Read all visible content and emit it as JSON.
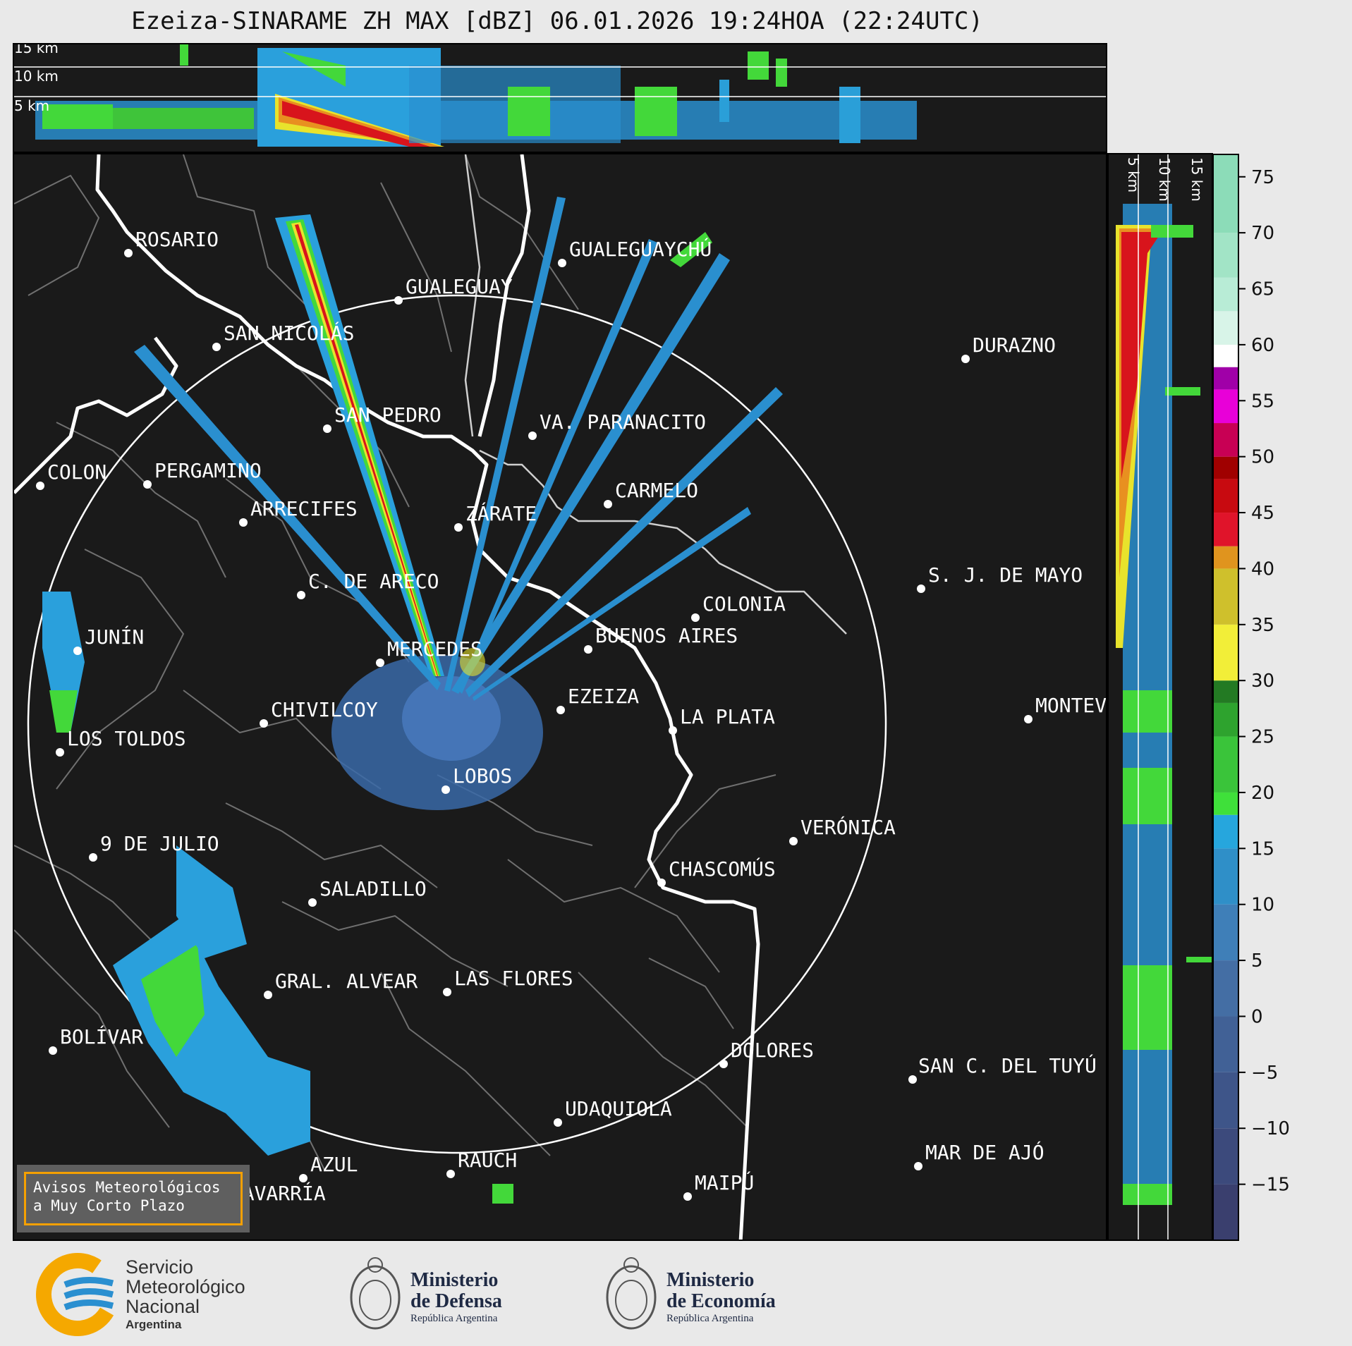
{
  "title": "Ezeiza-SINARAME ZH MAX [dBZ] 06.01.2026 19:24HOA (22:24UTC)",
  "top_profile": {
    "altitude_labels": [
      "15 km",
      "10 km",
      "5 km"
    ]
  },
  "side_profile": {
    "altitude_labels": [
      "5 km",
      "10 km",
      "15 km"
    ]
  },
  "colorbar": {
    "ticks": [
      "75",
      "70",
      "65",
      "60",
      "55",
      "50",
      "45",
      "40",
      "35",
      "30",
      "25",
      "20",
      "15",
      "10",
      "5",
      "0",
      "−5",
      "−10",
      "−15"
    ],
    "range": [
      -20,
      77
    ]
  },
  "cities": [
    {
      "name": "ROSARIO"
    },
    {
      "name": "GUALEGUAYCHÚ"
    },
    {
      "name": "GUALEGUAY"
    },
    {
      "name": "SAN NICOLÁS"
    },
    {
      "name": "DURAZNO"
    },
    {
      "name": "SAN PEDRO"
    },
    {
      "name": "VA. PARANACITO"
    },
    {
      "name": "COLON"
    },
    {
      "name": "PERGAMINO"
    },
    {
      "name": "CARMELO"
    },
    {
      "name": "ARRECIFES"
    },
    {
      "name": "ZÁRATE"
    },
    {
      "name": "S. J. DE MAYO"
    },
    {
      "name": "C. DE ARECO"
    },
    {
      "name": "COLONIA"
    },
    {
      "name": "JUNÍN"
    },
    {
      "name": "MERCEDES"
    },
    {
      "name": "BUENOS AIRES"
    },
    {
      "name": "EZEIZA"
    },
    {
      "name": "MONTEVIDEO"
    },
    {
      "name": "CHIVILCOY"
    },
    {
      "name": "LA PLATA"
    },
    {
      "name": "LOS TOLDOS"
    },
    {
      "name": "LOBOS"
    },
    {
      "name": "VERÓNICA"
    },
    {
      "name": "9 DE JULIO"
    },
    {
      "name": "CHASCOMÚS"
    },
    {
      "name": "SALADILLO"
    },
    {
      "name": "GRAL. ALVEAR"
    },
    {
      "name": "LAS FLORES"
    },
    {
      "name": "BOLÍVAR"
    },
    {
      "name": "DOLORES"
    },
    {
      "name": "SAN C. DEL TUYÚ"
    },
    {
      "name": "UDAQUIOLA"
    },
    {
      "name": "MAR DE AJÓ"
    },
    {
      "name": "AZUL"
    },
    {
      "name": "RAUCH"
    },
    {
      "name": "OLAVARRÍA"
    },
    {
      "name": "MAIPÚ"
    }
  ],
  "warning_box": {
    "line1": "Avisos Meteorológicos",
    "line2": "a Muy Corto Plazo"
  },
  "footer": {
    "smn": {
      "line1": "Servicio",
      "line2": "Meteorológico",
      "line3": "Nacional",
      "line4": "Argentina"
    },
    "defensa": {
      "line1": "Ministerio",
      "line2": "de Defensa",
      "line3": "República Argentina"
    },
    "economia": {
      "line1": "Ministerio",
      "line2": "de Economía",
      "line3": "República Argentina"
    }
  },
  "colors": {
    "accent_orange": "#f5a000",
    "smn_blue": "#2a8fd0",
    "panel_bg": "#1a1a1a"
  }
}
